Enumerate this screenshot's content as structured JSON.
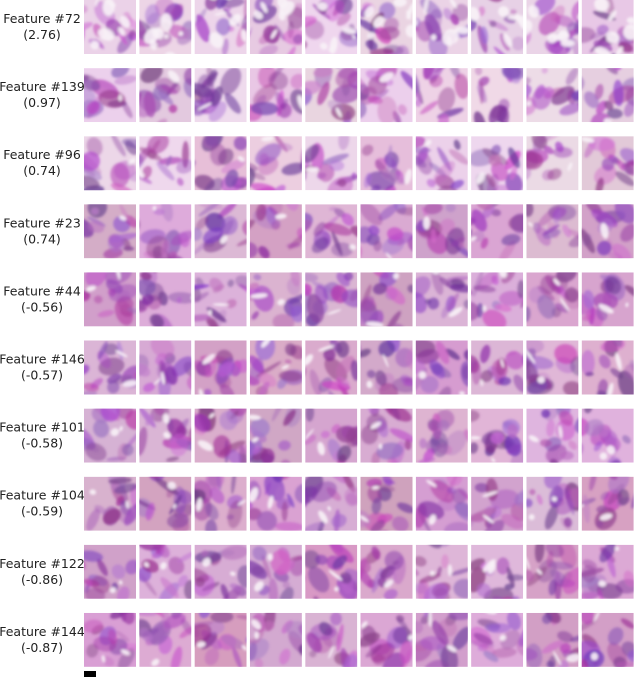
{
  "rows": [
    {
      "label": "Feature #72",
      "score": "(2.76)"
    },
    {
      "label": "Feature #139",
      "score": "(0.97)"
    },
    {
      "label": "Feature #96",
      "score": "(0.74)"
    },
    {
      "label": "Feature #23",
      "score": "(0.74)"
    },
    {
      "label": "Feature #44",
      "score": "(-0.56)"
    },
    {
      "label": "Feature #146",
      "score": "(-0.57)"
    },
    {
      "label": "Feature #101",
      "score": "(-0.58)"
    },
    {
      "label": "Feature #104",
      "score": "(-0.59)"
    },
    {
      "label": "Feature #122",
      "score": "(-0.86)"
    },
    {
      "label": "Feature #144",
      "score": "(-0.87)"
    }
  ]
}
